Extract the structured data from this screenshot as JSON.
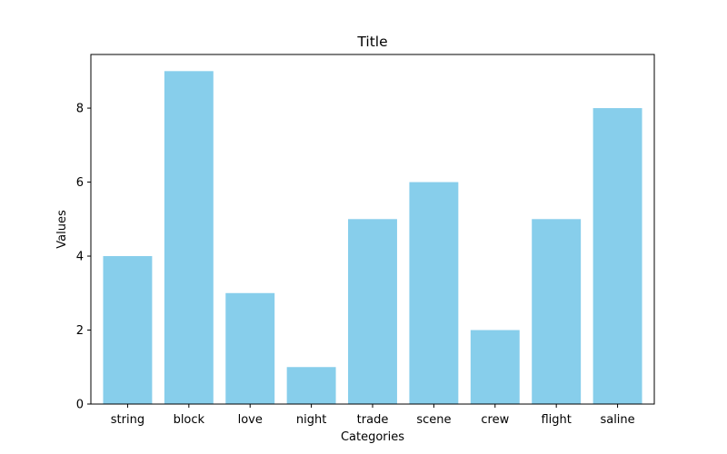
{
  "chart_data": {
    "type": "bar",
    "title": "Title",
    "xlabel": "Categories",
    "ylabel": "Values",
    "categories": [
      "string",
      "block",
      "love",
      "night",
      "trade",
      "scene",
      "crew",
      "flight",
      "saline"
    ],
    "values": [
      4,
      9,
      3,
      1,
      5,
      6,
      2,
      5,
      8
    ],
    "ylim": [
      0,
      9.45
    ],
    "yticks": [
      0,
      2,
      4,
      6,
      8
    ],
    "grid": false,
    "legend": "none",
    "bar_color": "#87CEEB"
  }
}
